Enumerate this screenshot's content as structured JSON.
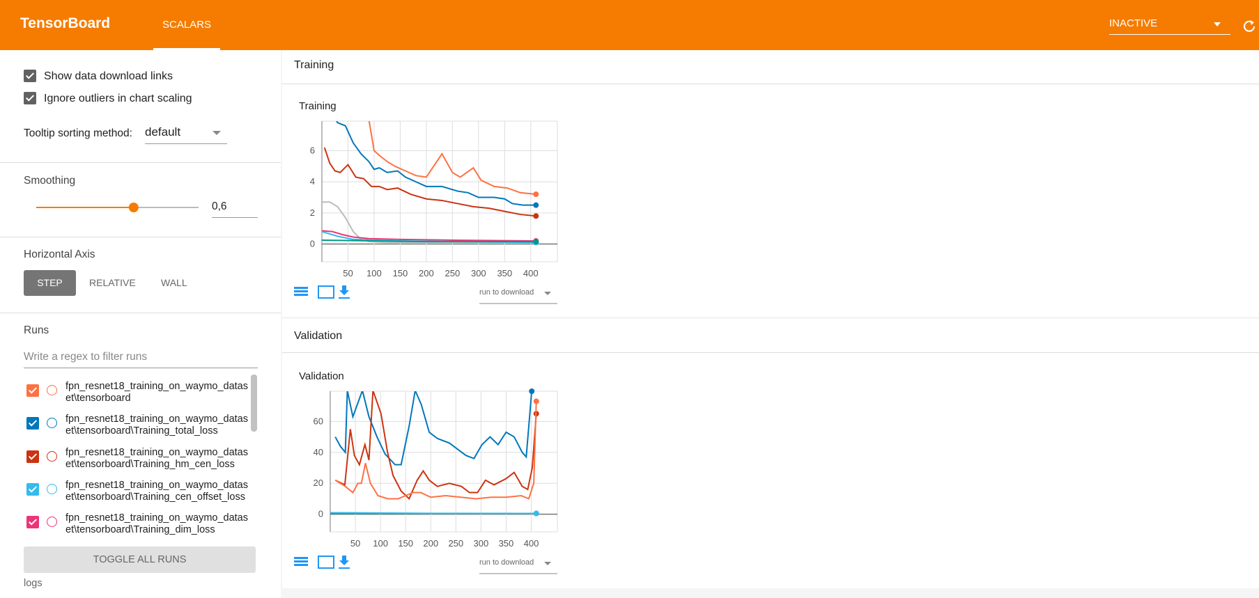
{
  "header": {
    "title": "TensorBoard",
    "tab": "SCALARS",
    "status": "INACTIVE"
  },
  "sidebar": {
    "options": [
      "Show data download links",
      "Ignore outliers in chart scaling"
    ],
    "tooltip_label": "Tooltip sorting method:",
    "tooltip_value": "default",
    "smoothing_label": "Smoothing",
    "smoothing": {
      "value": 0.6,
      "label": "0,6"
    },
    "axis_label": "Horizontal Axis",
    "axis_options": [
      "STEP",
      "RELATIVE",
      "WALL"
    ],
    "runs_label": "Runs",
    "filter_placeholder": "Write a regex to filter runs",
    "runs": [
      {
        "name": "fpn_resnet18_training_on_waymo_dataset\\tensorboard",
        "color": "#ff7043"
      },
      {
        "name": "fpn_resnet18_training_on_waymo_dataset\\tensorboard\\Training_total_loss",
        "color": "#0077bb"
      },
      {
        "name": "fpn_resnet18_training_on_waymo_dataset\\tensorboard\\Training_hm_cen_loss",
        "color": "#cc3311"
      },
      {
        "name": "fpn_resnet18_training_on_waymo_dataset\\tensorboard\\Training_cen_offset_loss",
        "color": "#33bbee"
      },
      {
        "name": "fpn_resnet18_training_on_waymo_dataset\\tensorboard\\Training_dim_loss",
        "color": "#ee3377"
      }
    ],
    "toggle": "TOGGLE ALL RUNS",
    "footer": "logs"
  },
  "chart_data": [
    {
      "type": "line",
      "group": "Training",
      "title": "Training",
      "download_label": "run to download",
      "xlim": [
        0,
        451
      ],
      "ylim": [
        -1.14,
        7.9
      ],
      "xticks": [
        50,
        100,
        150,
        200,
        250,
        300,
        350,
        400
      ],
      "yticks": [
        0,
        2,
        4,
        6
      ],
      "series": [
        {
          "color": "#ff7043",
          "x": [
            85,
            100,
            110,
            125,
            140,
            160,
            180,
            200,
            230,
            250,
            265,
            290,
            305,
            330,
            355,
            380,
            410
          ],
          "values": [
            9,
            6.0,
            5.7,
            5.3,
            5.0,
            4.7,
            4.4,
            4.3,
            5.8,
            4.6,
            4.3,
            4.9,
            4.1,
            3.7,
            3.6,
            3.3,
            3.2
          ]
        },
        {
          "color": "#0077bb",
          "x": [
            10,
            30,
            45,
            60,
            75,
            90,
            100,
            110,
            125,
            145,
            160,
            180,
            200,
            230,
            260,
            280,
            300,
            330,
            350,
            365,
            385,
            410
          ],
          "values": [
            9,
            7.8,
            7.6,
            6.5,
            5.8,
            5.3,
            4.8,
            4.9,
            4.6,
            4.7,
            4.3,
            4.0,
            3.7,
            3.7,
            3.4,
            3.3,
            3.0,
            3.0,
            2.9,
            2.6,
            2.5,
            2.5
          ]
        },
        {
          "color": "#cc3311",
          "x": [
            5,
            15,
            25,
            35,
            50,
            65,
            80,
            95,
            110,
            125,
            145,
            170,
            200,
            230,
            260,
            290,
            320,
            350,
            380,
            410
          ],
          "values": [
            6.2,
            5.2,
            4.7,
            4.6,
            5.1,
            4.3,
            4.2,
            3.7,
            3.7,
            3.5,
            3.6,
            3.2,
            2.9,
            2.8,
            2.6,
            2.4,
            2.3,
            2.1,
            1.9,
            1.8
          ]
        },
        {
          "color": "#bbbbbb",
          "x": [
            0,
            15,
            30,
            45,
            60,
            75,
            90,
            120,
            410
          ],
          "values": [
            2.7,
            2.7,
            2.4,
            1.7,
            0.8,
            0.3,
            0.15,
            0.1,
            0.1
          ]
        },
        {
          "color": "#ee3377",
          "x": [
            0,
            20,
            40,
            60,
            90,
            150,
            250,
            410
          ],
          "values": [
            0.85,
            0.8,
            0.6,
            0.45,
            0.35,
            0.3,
            0.25,
            0.2
          ]
        },
        {
          "color": "#33bbee",
          "x": [
            0,
            30,
            60,
            150,
            410
          ],
          "values": [
            0.8,
            0.5,
            0.3,
            0.2,
            0.1
          ]
        },
        {
          "color": "#009988",
          "x": [
            0,
            100,
            200,
            410
          ],
          "values": [
            0.25,
            0.2,
            0.15,
            0.15
          ]
        }
      ]
    },
    {
      "type": "line",
      "group": "Validation",
      "title": "Validation",
      "download_label": "run to download",
      "xlim": [
        0,
        452
      ],
      "ylim": [
        -11.4,
        79.5
      ],
      "xticks": [
        50,
        100,
        150,
        200,
        250,
        300,
        350,
        400
      ],
      "yticks": [
        0,
        20,
        40,
        60
      ],
      "series": [
        {
          "color": "#0077bb",
          "x": [
            10,
            20,
            30,
            34,
            45,
            64,
            77,
            93,
            109,
            129,
            141,
            157,
            169,
            181,
            197,
            213,
            237,
            270,
            286,
            302,
            318,
            334,
            350,
            366,
            382,
            390,
            401
          ],
          "values": [
            50,
            44,
            40,
            80,
            63,
            80,
            63,
            50,
            39,
            32,
            32,
            57,
            80,
            71,
            53,
            49,
            46,
            38,
            36,
            45,
            50,
            45,
            53,
            50,
            40,
            37,
            80
          ]
        },
        {
          "color": "#cc3311",
          "x": [
            10,
            29,
            40,
            48,
            58,
            69,
            77,
            85,
            101,
            114,
            125,
            141,
            157,
            173,
            185,
            197,
            213,
            237,
            261,
            277,
            293,
            309,
            326,
            350,
            366,
            382,
            393,
            402,
            410
          ],
          "values": [
            22,
            19,
            55,
            38,
            32,
            45,
            35,
            80,
            65,
            40,
            25,
            15,
            10,
            22,
            28,
            22,
            18,
            20,
            18,
            14,
            14,
            22,
            19,
            23,
            27,
            18,
            16,
            30,
            65
          ]
        },
        {
          "color": "#ff7043",
          "x": [
            10,
            30,
            45,
            55,
            62,
            70,
            80,
            95,
            115,
            135,
            150,
            165,
            180,
            200,
            230,
            260,
            290,
            320,
            350,
            380,
            395,
            405,
            410
          ],
          "values": [
            22,
            18,
            14,
            20,
            20,
            33,
            20,
            12,
            10,
            10,
            12,
            14,
            14,
            11,
            12,
            11,
            10,
            11,
            11,
            12,
            10,
            20,
            73
          ]
        },
        {
          "color": "#009988",
          "x": [
            0,
            410
          ],
          "values": [
            0.5,
            0.5
          ]
        },
        {
          "color": "#33bbee",
          "x": [
            0,
            200,
            410
          ],
          "values": [
            1,
            0.6,
            0.5
          ]
        }
      ]
    }
  ]
}
